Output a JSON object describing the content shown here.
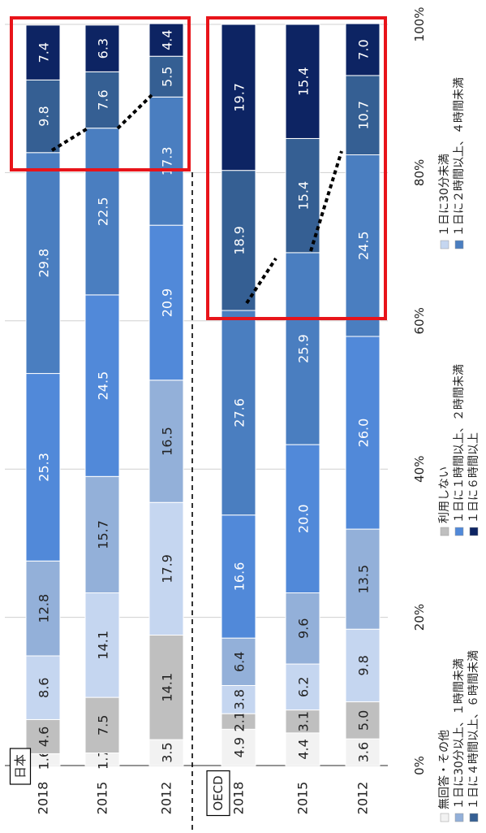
{
  "chart_data": {
    "type": "bar",
    "orientation": "horizontal-stacked-100",
    "rotated": "90deg-clockwise",
    "groups": [
      {
        "name": "日本",
        "rows": [
          {
            "label": "2018",
            "values": [
              1.6,
              4.6,
              8.6,
              12.8,
              25.3,
              29.8,
              9.8,
              7.4
            ]
          },
          {
            "label": "2015",
            "values": [
              1.7,
              7.5,
              14.1,
              15.7,
              24.5,
              22.5,
              7.6,
              6.3
            ]
          },
          {
            "label": "2012",
            "values": [
              3.5,
              14.1,
              17.9,
              16.5,
              20.9,
              17.3,
              5.5,
              4.4
            ]
          }
        ]
      },
      {
        "name": "OECD",
        "rows": [
          {
            "label": "2018",
            "values": [
              4.9,
              2.1,
              3.8,
              6.4,
              16.6,
              27.6,
              18.9,
              19.7
            ]
          },
          {
            "label": "2015",
            "values": [
              4.4,
              3.1,
              6.2,
              9.6,
              20.0,
              25.9,
              15.4,
              15.4
            ]
          },
          {
            "label": "2012",
            "values": [
              3.6,
              5.0,
              9.8,
              13.5,
              26.0,
              24.5,
              10.7,
              7.0
            ]
          }
        ]
      }
    ],
    "series": [
      {
        "name": "無回答・その他",
        "color": "#f2f2f2"
      },
      {
        "name": "利用しない",
        "color": "#bfbfbf"
      },
      {
        "name": "１日に30分未満",
        "color": "#c5d6f0"
      },
      {
        "name": "１日に30分以上、１時間未満",
        "color": "#93b0d9"
      },
      {
        "name": "１日に１時間以上、２時間未満",
        "color": "#5189d9"
      },
      {
        "name": "１日に２時間以上、４時間未満",
        "color": "#4a7ec0"
      },
      {
        "name": "１日に４時間以上、６時間未満",
        "color": "#355f93"
      },
      {
        "name": "１日に６時間以上",
        "color": "#0d2463"
      }
    ],
    "axis": {
      "ticks": [
        "0%",
        "20%",
        "40%",
        "60%",
        "80%",
        "100%"
      ],
      "range": [
        0,
        100
      ]
    },
    "legend": {
      "placement": "bottom"
    }
  }
}
